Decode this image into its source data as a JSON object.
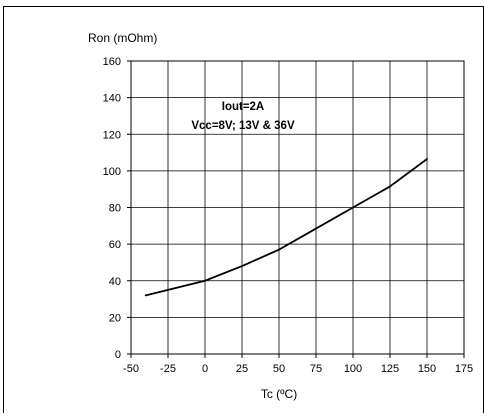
{
  "chart_data": {
    "type": "line",
    "title": "",
    "xlabel": "Tc (ºC)",
    "ylabel": "Ron (mOhm)",
    "xlim": [
      -50,
      175
    ],
    "ylim": [
      0,
      160
    ],
    "x_ticks": [
      -50,
      -25,
      0,
      25,
      50,
      75,
      100,
      125,
      150,
      175
    ],
    "y_ticks": [
      0,
      20,
      40,
      60,
      80,
      100,
      120,
      140,
      160
    ],
    "x_tick_labels": [
      "-50",
      "-25",
      "0",
      "25",
      "50",
      "75",
      "100",
      "125",
      "150",
      "175"
    ],
    "y_tick_labels": [
      "0",
      "20",
      "40",
      "60",
      "80",
      "100",
      "120",
      "140",
      "160"
    ],
    "grid": true,
    "annotations": [
      "Iout=2A",
      "Vcc=8V; 13V & 36V"
    ],
    "series": [
      {
        "x": [
          -40,
          0,
          25,
          50,
          75,
          100,
          125,
          150
        ],
        "y": [
          32,
          40,
          48,
          57,
          68.5,
          80,
          91.5,
          106.5
        ]
      }
    ],
    "colors": {
      "line": "#000000",
      "grid": "#000000",
      "frame": "#000000"
    }
  }
}
